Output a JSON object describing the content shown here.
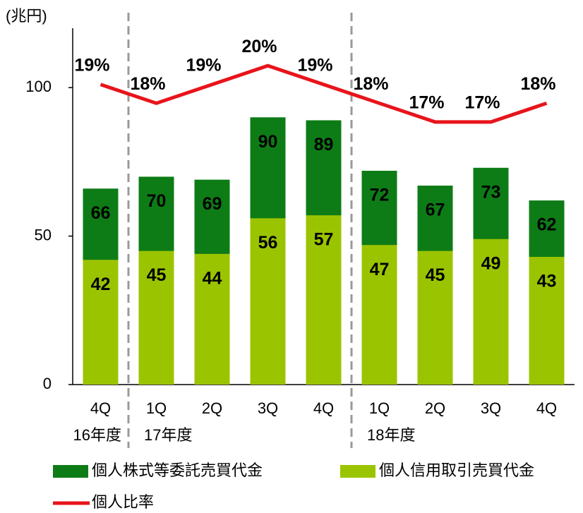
{
  "chart_data": {
    "type": "bar-line",
    "y_axis_label": "(兆円)",
    "categories": [
      "4Q",
      "1Q",
      "2Q",
      "3Q",
      "4Q",
      "1Q",
      "2Q",
      "3Q",
      "4Q"
    ],
    "groups": [
      {
        "label": "16年度",
        "count": 1
      },
      {
        "label": "17年度",
        "count": 4
      },
      {
        "label": "18年度",
        "count": 4
      }
    ],
    "ylim": [
      0,
      120
    ],
    "yticks": [
      0,
      50,
      100
    ],
    "y2lim": [
      3,
      22
    ],
    "series": [
      {
        "name": "個人株式等委託売買代金",
        "type": "bar",
        "color": "#0e7c16",
        "values": [
          66,
          70,
          69,
          90,
          89,
          72,
          67,
          73,
          62
        ]
      },
      {
        "name": "個人信用取引売買代金",
        "type": "bar",
        "color": "#9bc400",
        "values": [
          42,
          45,
          44,
          56,
          57,
          47,
          45,
          49,
          43
        ]
      },
      {
        "name": "個人比率",
        "type": "line",
        "axis": "y2",
        "color": "#e8141b",
        "values": [
          19,
          18,
          19,
          20,
          19,
          18,
          17,
          17,
          18
        ],
        "value_labels": [
          "19%",
          "18%",
          "19%",
          "20%",
          "19%",
          "18%",
          "17%",
          "17%",
          "18%"
        ]
      }
    ]
  }
}
